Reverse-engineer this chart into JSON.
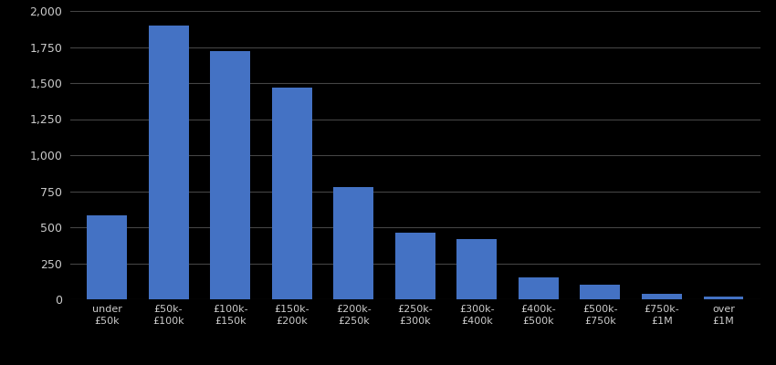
{
  "categories": [
    "under\n£50k",
    "£50k-\n£100k",
    "£100k-\n£150k",
    "£150k-\n£200k",
    "£200k-\n£250k",
    "£250k-\n£300k",
    "£300k-\n£400k",
    "£400k-\n£500k",
    "£500k-\n£750k",
    "£750k-\n£1M",
    "over\n£1M"
  ],
  "values": [
    580,
    1900,
    1720,
    1470,
    780,
    460,
    420,
    150,
    100,
    35,
    20
  ],
  "bar_color": "#4472c4",
  "background_color": "#000000",
  "text_color": "#cccccc",
  "grid_color": "#444444",
  "ylim": [
    0,
    2000
  ],
  "yticks": [
    0,
    250,
    500,
    750,
    1000,
    1250,
    1500,
    1750,
    2000
  ],
  "bar_width": 0.65
}
